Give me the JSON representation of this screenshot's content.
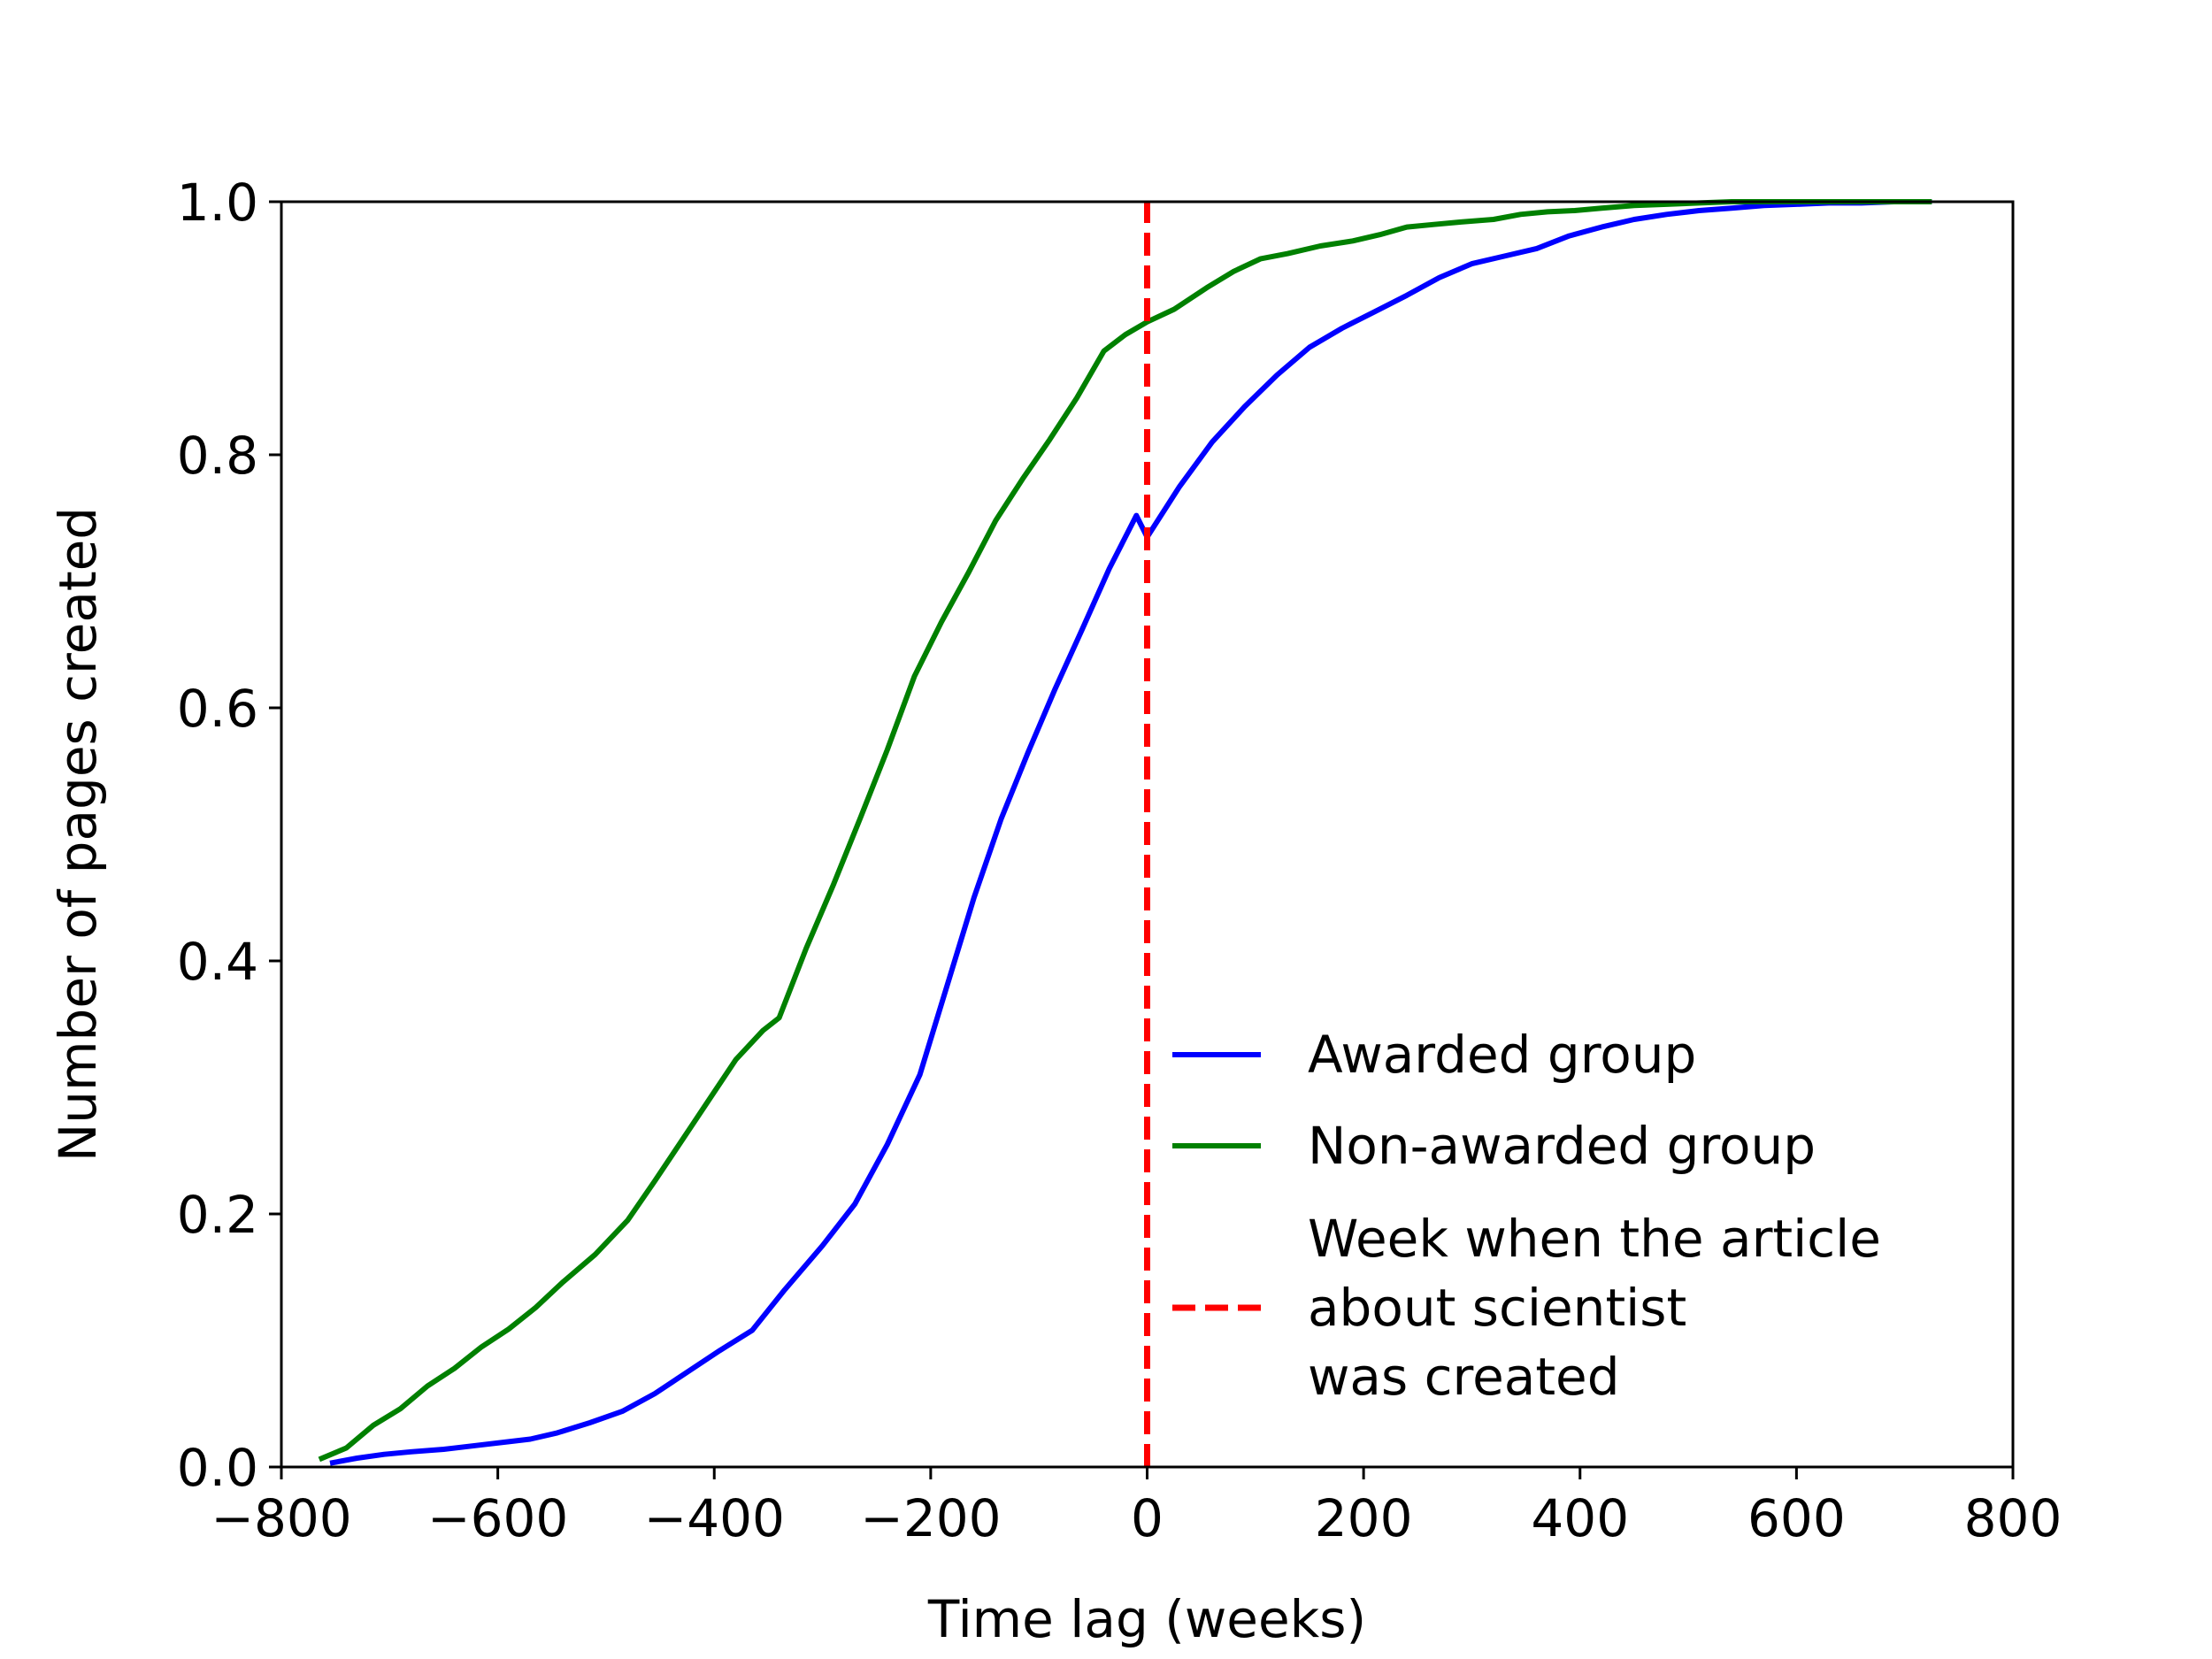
{
  "chart_data": {
    "type": "line",
    "title": "",
    "xlabel": "Time lag (weeks)",
    "ylabel": "Number of pages created",
    "xlim": [
      -800,
      800
    ],
    "ylim": [
      0.0,
      1.0
    ],
    "xticks": [
      "−800",
      "−600",
      "−400",
      "−200",
      "0",
      "200",
      "400",
      "600",
      "800"
    ],
    "yticks": [
      "0.0",
      "0.2",
      "0.4",
      "0.6",
      "0.8",
      "1.0"
    ],
    "grid": false,
    "legend_position": "bottom-right",
    "series": [
      {
        "name": "Awarded group",
        "color": "#0000ff",
        "style": "solid",
        "x": [
          -755,
          -730,
          -705,
          -680,
          -650,
          -620,
          -590,
          -570,
          -545,
          -515,
          -485,
          -455,
          -425,
          -395,
          -365,
          -335,
          -300,
          -270,
          -240,
          -210,
          -185,
          -160,
          -135,
          -110,
          -85,
          -60,
          -35,
          -10,
          0,
          30,
          60,
          90,
          120,
          150,
          180,
          210,
          240,
          270,
          300,
          330,
          360,
          390,
          420,
          450,
          480,
          510,
          540,
          570,
          600,
          630,
          660,
          690,
          725
        ],
        "y": [
          0.003,
          0.007,
          0.01,
          0.012,
          0.014,
          0.017,
          0.02,
          0.022,
          0.027,
          0.035,
          0.044,
          0.058,
          0.075,
          0.092,
          0.108,
          0.14,
          0.175,
          0.208,
          0.255,
          0.31,
          0.38,
          0.45,
          0.512,
          0.565,
          0.615,
          0.662,
          0.71,
          0.752,
          0.735,
          0.775,
          0.81,
          0.838,
          0.863,
          0.885,
          0.9,
          0.913,
          0.926,
          0.94,
          0.951,
          0.957,
          0.963,
          0.973,
          0.98,
          0.986,
          0.99,
          0.993,
          0.995,
          0.997,
          0.998,
          0.999,
          0.999,
          1.0,
          1.0
        ]
      },
      {
        "name": "Non-awarded group",
        "color": "#008000",
        "style": "solid",
        "x": [
          -765,
          -740,
          -715,
          -690,
          -665,
          -640,
          -615,
          -590,
          -565,
          -540,
          -510,
          -480,
          -455,
          -430,
          -405,
          -380,
          -355,
          -340,
          -315,
          -290,
          -265,
          -240,
          -215,
          -190,
          -165,
          -140,
          -115,
          -90,
          -65,
          -40,
          -20,
          0,
          25,
          55,
          80,
          105,
          130,
          160,
          190,
          215,
          240,
          265,
          290,
          320,
          345,
          370,
          395,
          420,
          450,
          480,
          510,
          540,
          600,
          725
        ],
        "y": [
          0.006,
          0.015,
          0.033,
          0.046,
          0.064,
          0.078,
          0.095,
          0.109,
          0.126,
          0.146,
          0.168,
          0.195,
          0.226,
          0.258,
          0.29,
          0.322,
          0.345,
          0.355,
          0.41,
          0.46,
          0.513,
          0.567,
          0.625,
          0.668,
          0.707,
          0.748,
          0.781,
          0.812,
          0.845,
          0.882,
          0.895,
          0.905,
          0.915,
          0.932,
          0.945,
          0.955,
          0.959,
          0.965,
          0.969,
          0.974,
          0.98,
          0.982,
          0.984,
          0.986,
          0.99,
          0.992,
          0.993,
          0.995,
          0.997,
          0.998,
          0.999,
          1.0,
          1.0,
          1.0
        ]
      },
      {
        "name": "Week when the article about scientist was created",
        "name_lines": [
          "Week when the article",
          "about scientist",
          "was created"
        ],
        "color": "#ff0000",
        "style": "dashed",
        "x": [
          0,
          0
        ],
        "y": [
          0.0,
          1.0
        ]
      }
    ]
  }
}
